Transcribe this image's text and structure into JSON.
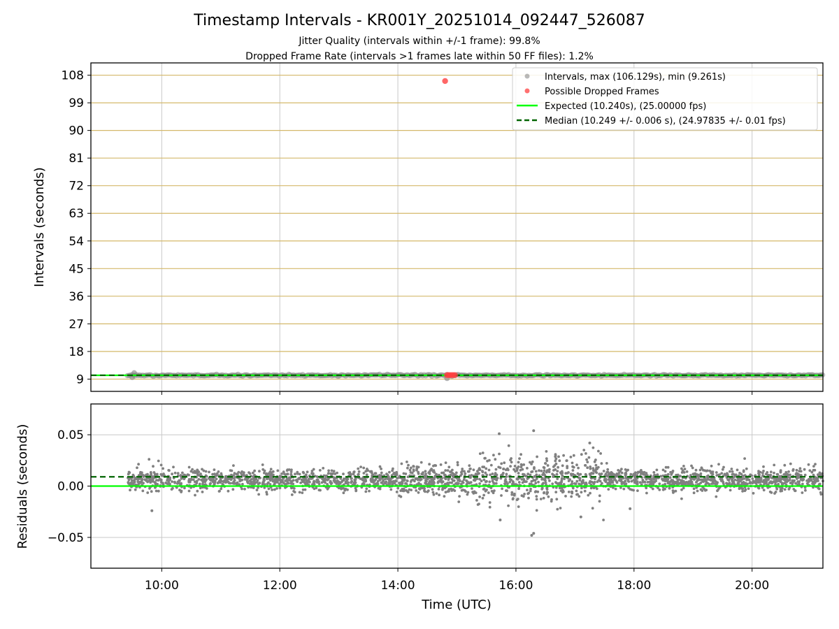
{
  "title": "Timestamp Intervals - KR001Y_20251014_092447_526087",
  "subtitle_1": "Jitter Quality (intervals within +/-1 frame): 99.8%",
  "subtitle_2": "Dropped Frame Rate (intervals >1 frames late within 50 FF files): 1.2%",
  "colors": {
    "intervals": "#808080",
    "dropped": "#ff4040",
    "expected": "#00ff00",
    "median": "#006400",
    "hgrid_top": "#d4b86a",
    "grid": "#c8c8c8"
  },
  "chart_data": [
    {
      "type": "scatter",
      "ylabel": "Intervals (seconds)",
      "xlim": [
        "08:48",
        "21:12"
      ],
      "ylim": [
        5.0,
        112.0
      ],
      "yticks": [
        9,
        18,
        27,
        36,
        45,
        54,
        63,
        72,
        81,
        90,
        99,
        108
      ],
      "grid": true,
      "legend_position": "top-right",
      "legend": [
        "Intervals, max (106.129s), min (9.261s)",
        "Possible Dropped Frames",
        "Expected (10.240s), (25.00000 fps)",
        "Median (10.249 +/- 0.006 s), (24.97835 +/- 0.01 fps)"
      ],
      "series": [
        {
          "name": "Intervals, max (106.129s), min (9.261s)",
          "x_range": [
            "09:25",
            "21:12"
          ],
          "y_approx": 10.25,
          "max": 106.129,
          "min": 9.261
        },
        {
          "name": "Possible Dropped Frames",
          "points": [
            {
              "x": "14:48",
              "y": 106.1
            },
            {
              "x": "14:50",
              "y": 10.3
            },
            {
              "x": "14:52",
              "y": 10.3
            },
            {
              "x": "14:54",
              "y": 10.3
            },
            {
              "x": "14:56",
              "y": 10.3
            },
            {
              "x": "14:58",
              "y": 10.3
            }
          ]
        },
        {
          "name": "Expected (10.240s), (25.00000 fps)",
          "y": 10.24
        },
        {
          "name": "Median (10.249 +/- 0.006 s), (24.97835 +/- 0.01 fps)",
          "y": 10.249
        }
      ]
    },
    {
      "type": "scatter",
      "ylabel": "Residuals (seconds)",
      "xlabel": "Time (UTC)",
      "xlim": [
        "08:48",
        "21:12"
      ],
      "xticks": [
        "10:00",
        "12:00",
        "14:00",
        "16:00",
        "18:00",
        "20:00"
      ],
      "ylim": [
        -0.08,
        0.08
      ],
      "yticks": [
        "−0.05",
        "0.00",
        "0.05"
      ],
      "ytick_values": [
        -0.05,
        0.0,
        0.05
      ],
      "grid": true,
      "expected_residual": 0.0,
      "median_residual": 0.009,
      "residual_spread": {
        "x_range": [
          "09:25",
          "21:12"
        ],
        "center": 0.006,
        "typical_min": -0.008,
        "typical_max": 0.02,
        "outliers": [
          {
            "x": "16:18",
            "y": -0.046
          },
          {
            "x": "16:16",
            "y": -0.048
          },
          {
            "x": "16:18",
            "y": 0.054
          },
          {
            "x": "15:43",
            "y": 0.051
          },
          {
            "x": "15:44",
            "y": -0.033
          },
          {
            "x": "09:50",
            "y": -0.024
          },
          {
            "x": "17:56",
            "y": -0.022
          },
          {
            "x": "17:15",
            "y": 0.042
          },
          {
            "x": "17:06",
            "y": -0.03
          }
        ]
      }
    }
  ]
}
